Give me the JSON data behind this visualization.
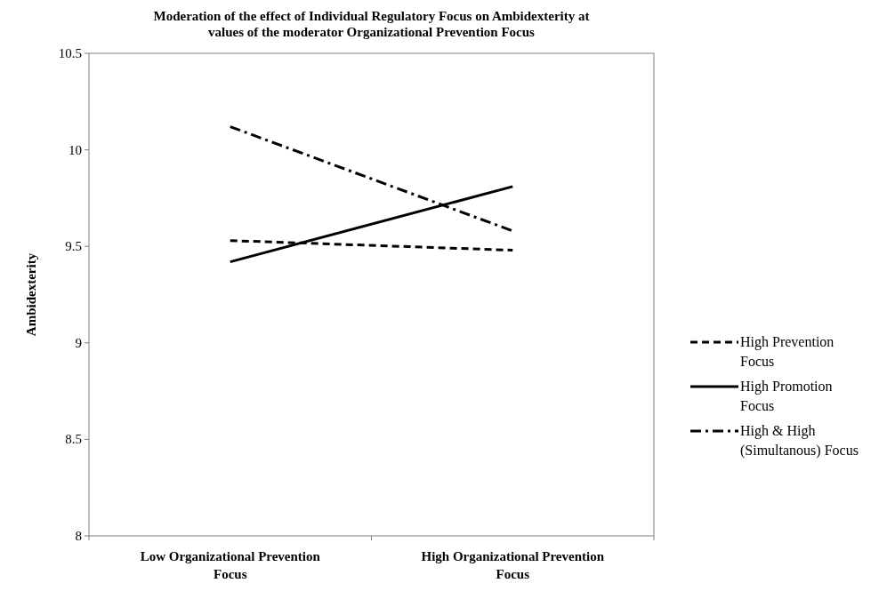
{
  "chart_data": {
    "type": "line",
    "title": "Moderation of the effect of Individual Regulatory Focus on Ambidexterity at values of the moderator Organizational Prevention Focus",
    "ylabel": "Ambidexterity",
    "categories": [
      "Low Organizational Prevention Focus",
      "High Organizational Prevention Focus"
    ],
    "series": [
      {
        "name": "High Prevention Focus",
        "color": "#000000",
        "values": [
          9.53,
          9.48
        ],
        "line_style": "dashed"
      },
      {
        "name": "High Promotion Focus",
        "color": "#000000",
        "values": [
          9.42,
          9.81
        ],
        "line_style": "solid"
      },
      {
        "name": "High & High (Simultanous) Focus",
        "color": "#000000",
        "values": [
          10.12,
          9.58
        ],
        "line_style": "dashdot"
      }
    ],
    "ylim": [
      8,
      10.5
    ],
    "yticks": [
      8,
      8.5,
      9,
      9.5,
      10,
      10.5
    ],
    "grid": false,
    "legend": "right",
    "marker": "none"
  }
}
